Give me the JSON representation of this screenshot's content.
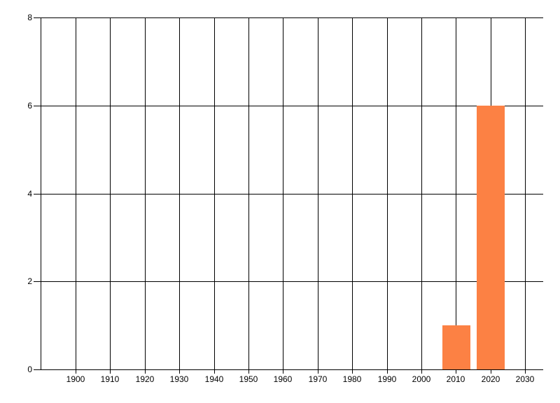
{
  "chart_data": {
    "type": "bar",
    "title": "",
    "xlabel": "",
    "ylabel": "",
    "x_ticks": [
      1900,
      1910,
      1920,
      1930,
      1940,
      1950,
      1960,
      1970,
      1980,
      1990,
      2000,
      2010,
      2020,
      2030
    ],
    "x_tick_labels": [
      "1900",
      "1910",
      "1920",
      "1930",
      "1940",
      "1950",
      "1960",
      "1970",
      "1980",
      "1990",
      "2000",
      "2010",
      "2020",
      "2030"
    ],
    "y_ticks": [
      0,
      2,
      4,
      6,
      8
    ],
    "y_tick_labels": [
      "0",
      "2",
      "4",
      "6",
      "8"
    ],
    "xlim": [
      1889.9,
      2035.2
    ],
    "ylim": [
      0,
      8
    ],
    "bars": [
      {
        "x": 2010,
        "value": 1
      },
      {
        "x": 2020,
        "value": 6
      }
    ],
    "bar_width_x": 8,
    "grid": "on",
    "legend": "none",
    "colors": {
      "bar": "#fc8144",
      "grid": "#000000",
      "axis": "#000000",
      "text": "#000000",
      "background": "#ffffff"
    }
  }
}
